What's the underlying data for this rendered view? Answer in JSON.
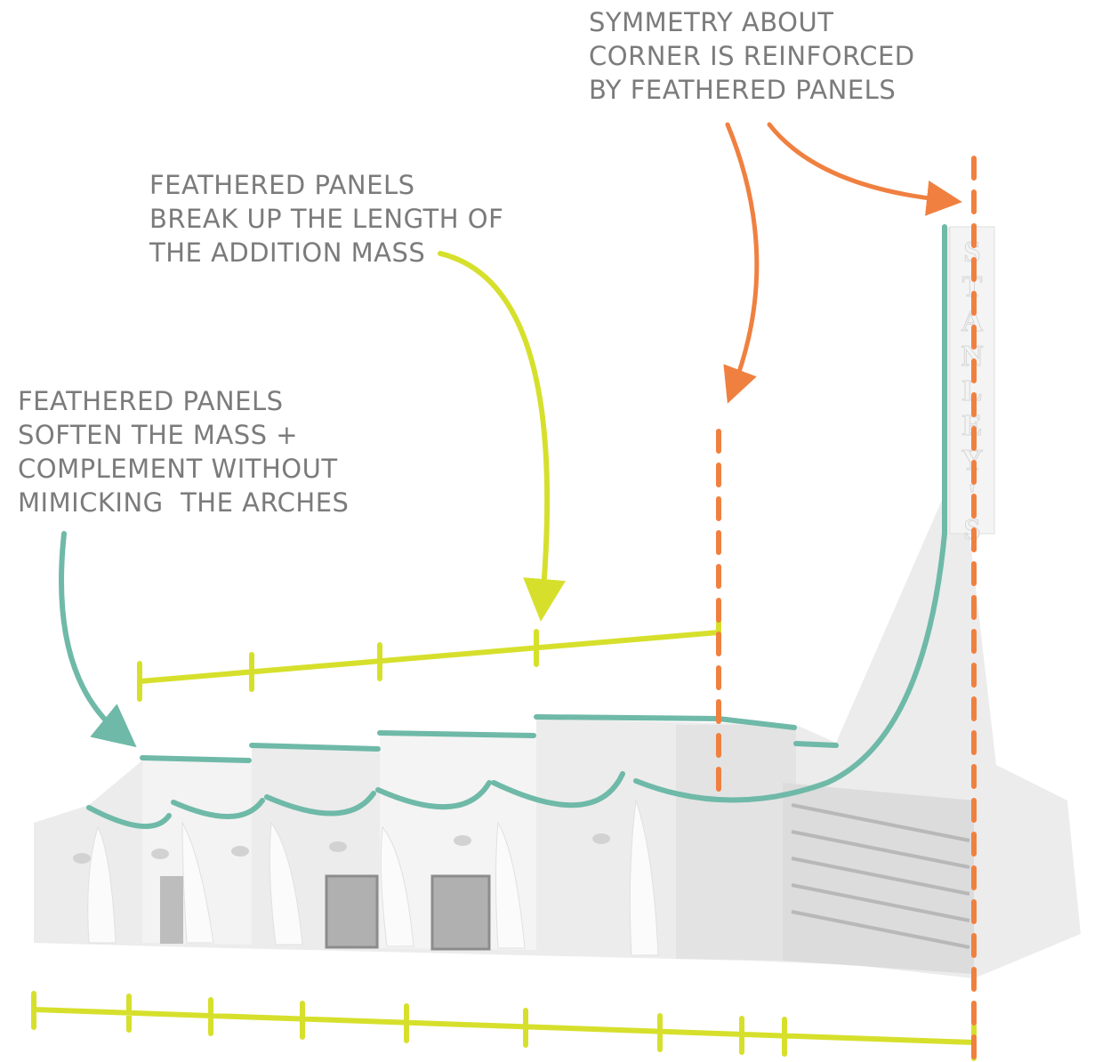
{
  "annotations": [
    {
      "lines": [
        "SYMMETRY ABOUT",
        "CORNER IS REINFORCED",
        "BY FEATHERED PANELS"
      ]
    },
    {
      "lines": [
        "FEATHERED PANELS",
        "BREAK UP THE LENGTH OF",
        "THE ADDITION MASS"
      ]
    },
    {
      "lines": [
        "FEATHERED PANELS",
        "SOFTEN THE MASS +",
        "COMPLEMENT WITHOUT",
        "MIMICKING  THE ARCHES"
      ]
    }
  ],
  "sign": "STANLEY'S"
}
